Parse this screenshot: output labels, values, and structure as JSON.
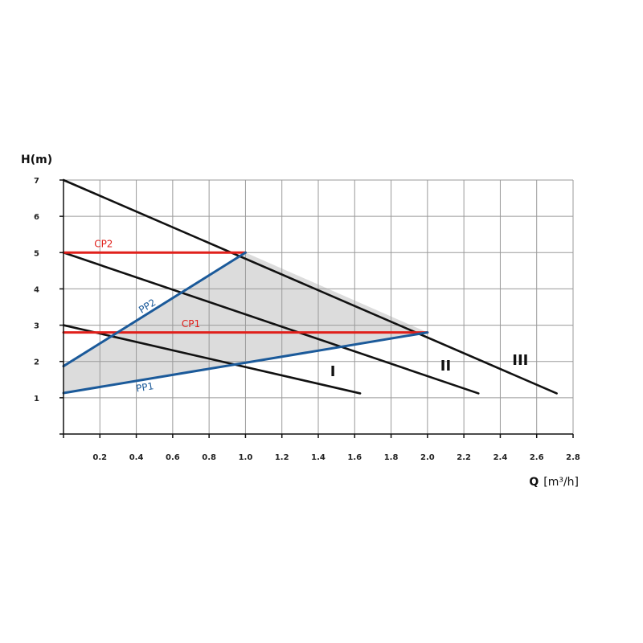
{
  "chart_data": {
    "type": "line",
    "title": "",
    "xlabel": "Q",
    "xunit": "[m³/h]",
    "ylabel": "H(m)",
    "xlim": [
      0,
      2.8
    ],
    "ylim": [
      0,
      7
    ],
    "grid": true,
    "x_ticks": [
      0.2,
      0.4,
      0.6,
      0.8,
      1.0,
      1.2,
      1.4,
      1.6,
      1.8,
      2.0,
      2.2,
      2.4,
      2.6,
      2.8
    ],
    "x_tick_labels": [
      "0.2",
      "0.4",
      "0.6",
      "0.8",
      "1.0",
      "1.2",
      "1.4",
      "1.6",
      "1.8",
      "2.0",
      "2.2",
      "2.4",
      "2.6",
      "2.8"
    ],
    "y_ticks": [
      1,
      2,
      3,
      4,
      5,
      6,
      7
    ],
    "y_tick_labels": [
      "1",
      "2",
      "3",
      "4",
      "5",
      "6",
      "7"
    ],
    "series": [
      {
        "name": "I",
        "color": "#111111",
        "points": [
          [
            0,
            3.0
          ],
          [
            1.63,
            1.12
          ]
        ],
        "label_at": [
          1.48,
          1.6
        ]
      },
      {
        "name": "II",
        "color": "#111111",
        "points": [
          [
            0,
            5.0
          ],
          [
            2.28,
            1.12
          ]
        ],
        "label_at": [
          2.1,
          1.75
        ]
      },
      {
        "name": "III",
        "color": "#111111",
        "points": [
          [
            0,
            7.0
          ],
          [
            2.71,
            1.12
          ]
        ],
        "label_at": [
          2.51,
          1.9
        ]
      },
      {
        "name": "CP1",
        "color": "#e0201b",
        "points": [
          [
            0,
            2.8
          ],
          [
            2.0,
            2.8
          ]
        ],
        "label_at": [
          0.7,
          2.95
        ]
      },
      {
        "name": "CP2",
        "color": "#e0201b",
        "points": [
          [
            0,
            5.0
          ],
          [
            1.0,
            5.0
          ]
        ],
        "label_at": [
          0.22,
          5.15
        ]
      },
      {
        "name": "PP1",
        "color": "#1b5a9a",
        "points": [
          [
            0,
            1.13
          ],
          [
            2.0,
            2.8
          ]
        ],
        "label_at": [
          0.45,
          1.2
        ]
      },
      {
        "name": "PP2",
        "color": "#1b5a9a",
        "points": [
          [
            0,
            1.87
          ],
          [
            1.0,
            5.0
          ]
        ],
        "label_at": [
          0.47,
          3.45
        ]
      }
    ],
    "shaded_regions": [
      {
        "color": "#dcdcdc",
        "points": [
          [
            0,
            1.13
          ],
          [
            0,
            1.87
          ],
          [
            1.0,
            5.0
          ],
          [
            2.0,
            2.8
          ]
        ]
      }
    ]
  }
}
